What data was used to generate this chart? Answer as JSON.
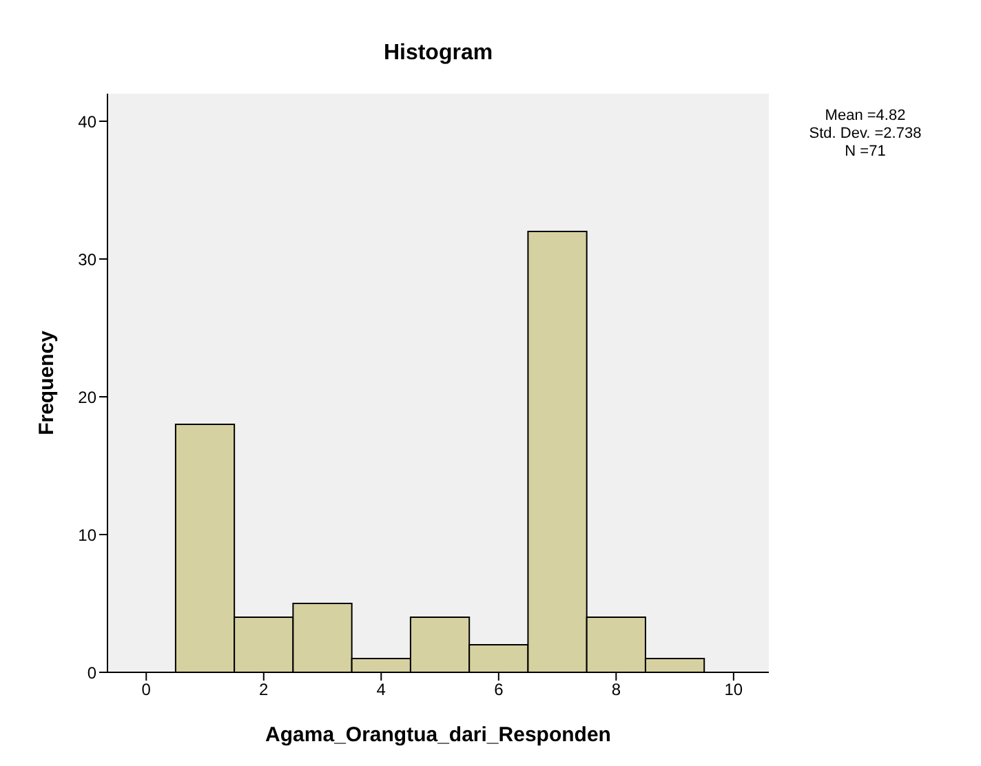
{
  "chart_data": {
    "type": "histogram",
    "title": "Histogram",
    "xlabel": "Agama_Orangtua_dari_Responden",
    "ylabel": "Frequency",
    "bins": [
      0.5,
      1.5,
      2.5,
      3.5,
      4.5,
      5.5,
      6.5,
      7.5,
      8.5,
      9.5
    ],
    "values": [
      18,
      4,
      5,
      1,
      4,
      2,
      32,
      4,
      1
    ],
    "color": "#d6d1a0",
    "xlim": [
      -0.66,
      10.6
    ],
    "xticks": [
      0,
      2,
      4,
      6,
      8,
      10
    ],
    "ylim": [
      0,
      42
    ],
    "yticks": [
      0,
      10,
      20,
      30,
      40
    ],
    "grid": false,
    "annotations": [
      "Mean =4.82",
      "Std. Dev. =2.738",
      "N =71"
    ]
  }
}
